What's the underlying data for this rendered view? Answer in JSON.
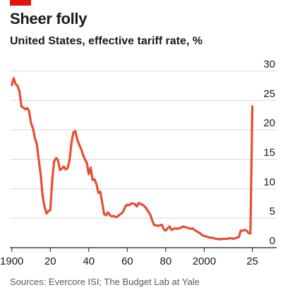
{
  "header": {
    "title": "Sheer folly",
    "subtitle": "United States, effective tariff rate, %"
  },
  "footer": {
    "source": "Sources: Evercore ISI; The Budget Lab at Yale"
  },
  "colors": {
    "accent": "#e3120b",
    "line": "#e64e33",
    "grid": "#d9d9d9",
    "axis": "#1a1a1a"
  },
  "chart_data": {
    "type": "line",
    "title": "Sheer folly",
    "subtitle": "United States, effective tariff rate, %",
    "xlabel": "",
    "ylabel": "",
    "xlim": [
      1899,
      2027
    ],
    "ylim": [
      0,
      30
    ],
    "x_ticks": [
      1900,
      1920,
      1940,
      1960,
      1980,
      2000,
      2025
    ],
    "x_tick_labels": [
      "1900",
      "20",
      "40",
      "60",
      "80",
      "2000",
      "25"
    ],
    "y_ticks": [
      0,
      5,
      10,
      15,
      20,
      25,
      30
    ],
    "y_tick_labels": [
      "0",
      "5",
      "10",
      "15",
      "20",
      "25",
      "30"
    ],
    "y_axis_position": "right",
    "grid": true,
    "legend": "none",
    "series": [
      {
        "x": [
          1900,
          1901,
          1902,
          1903,
          1904,
          1905,
          1906,
          1907,
          1908,
          1909,
          1910,
          1911,
          1912,
          1913,
          1914,
          1915,
          1916,
          1917,
          1918,
          1919,
          1920,
          1921,
          1922,
          1923,
          1924,
          1925,
          1926,
          1927,
          1928,
          1929,
          1930,
          1931,
          1932,
          1933,
          1934,
          1935,
          1936,
          1937,
          1938,
          1939,
          1940,
          1941,
          1942,
          1943,
          1944,
          1945,
          1946,
          1947,
          1948,
          1949,
          1950,
          1951,
          1952,
          1953,
          1954,
          1955,
          1956,
          1957,
          1958,
          1959,
          1960,
          1961,
          1962,
          1963,
          1964,
          1965,
          1966,
          1967,
          1968,
          1969,
          1970,
          1971,
          1972,
          1973,
          1974,
          1975,
          1976,
          1977,
          1978,
          1979,
          1980,
          1981,
          1982,
          1983,
          1984,
          1985,
          1986,
          1987,
          1988,
          1989,
          1990,
          1991,
          1992,
          1993,
          1994,
          1995,
          1996,
          1997,
          1998,
          1999,
          2000,
          2001,
          2002,
          2003,
          2004,
          2005,
          2006,
          2007,
          2008,
          2009,
          2010,
          2011,
          2012,
          2013,
          2014,
          2015,
          2016,
          2017,
          2018,
          2019,
          2020,
          2021,
          2022,
          2023,
          2024,
          2025
        ],
        "y": [
          27.6,
          28.8,
          27.8,
          27.5,
          26.5,
          24.0,
          23.8,
          23.5,
          23.7,
          23.2,
          21.1,
          20.3,
          18.6,
          17.6,
          14.9,
          12.5,
          8.8,
          7.0,
          5.8,
          6.2,
          6.4,
          11.4,
          14.7,
          15.2,
          14.9,
          13.2,
          13.4,
          13.8,
          13.3,
          13.5,
          14.8,
          17.8,
          19.6,
          19.8,
          18.4,
          17.5,
          16.8,
          15.8,
          15.0,
          14.4,
          12.5,
          13.6,
          11.5,
          11.6,
          10.8,
          9.3,
          9.5,
          7.6,
          5.7,
          5.5,
          6.0,
          5.5,
          5.3,
          5.4,
          5.2,
          5.3,
          5.6,
          5.8,
          6.2,
          7.0,
          7.3,
          7.2,
          7.5,
          7.5,
          7.4,
          7.0,
          7.6,
          7.4,
          7.3,
          7.0,
          6.6,
          6.1,
          5.6,
          4.6,
          3.8,
          3.8,
          3.7,
          3.8,
          3.9,
          3.1,
          2.9,
          3.3,
          3.6,
          3.0,
          3.2,
          3.3,
          3.2,
          3.3,
          3.4,
          3.6,
          3.5,
          3.4,
          3.3,
          3.2,
          3.3,
          3.0,
          2.8,
          2.6,
          2.4,
          2.1,
          2.0,
          1.9,
          1.8,
          1.7,
          1.7,
          1.6,
          1.5,
          1.5,
          1.4,
          1.5,
          1.5,
          1.5,
          1.5,
          1.6,
          1.6,
          1.5,
          1.6,
          1.7,
          1.8,
          2.9,
          2.9,
          3.0,
          2.9,
          2.5,
          2.4,
          24.0
        ]
      }
    ]
  }
}
